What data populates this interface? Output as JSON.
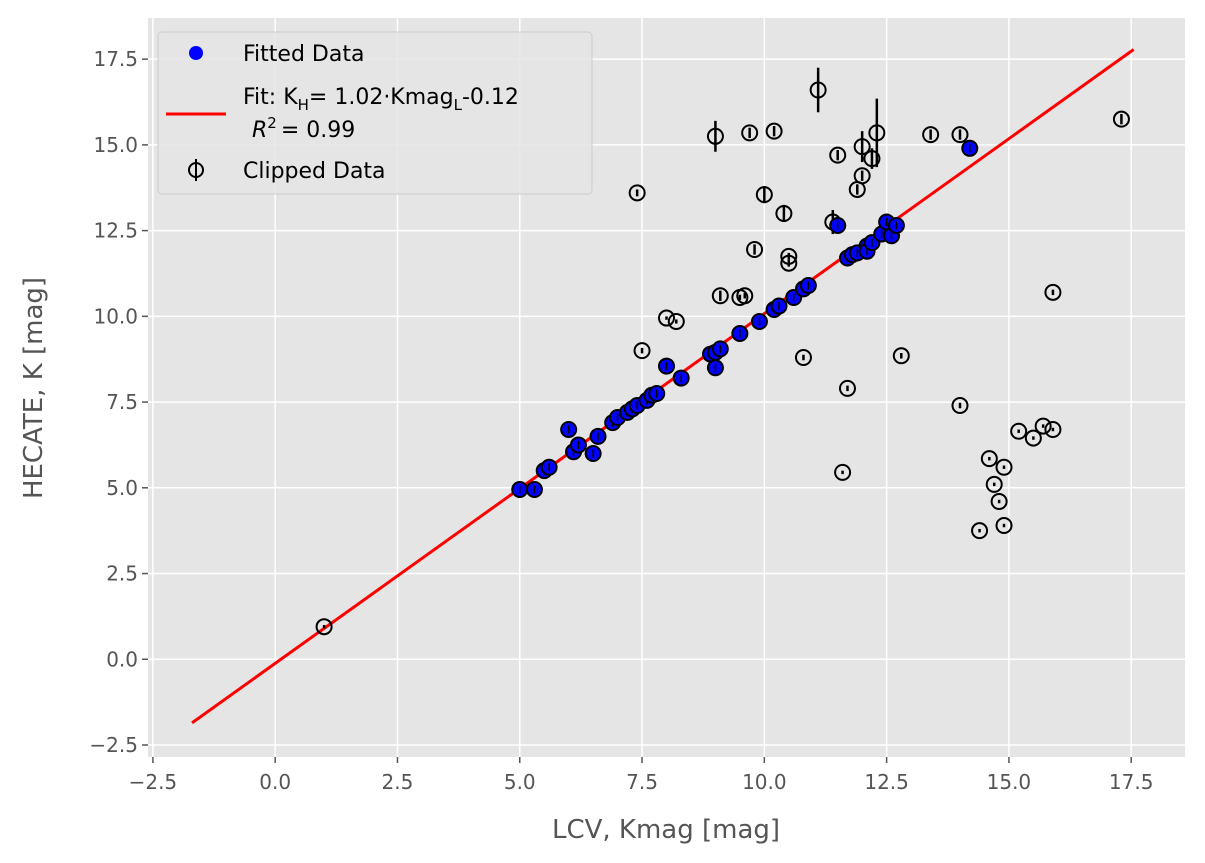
{
  "chart_data": {
    "type": "scatter",
    "xlabel": "LCV, Kmag [mag]",
    "ylabel": "HECATE, K [mag]",
    "xlim": [
      -2.6,
      18.6
    ],
    "ylim": [
      -2.85,
      18.7
    ],
    "x_ticks": [
      "−2.5",
      "0.0",
      "2.5",
      "5.0",
      "7.5",
      "10.0",
      "12.5",
      "15.0",
      "17.5"
    ],
    "y_ticks": [
      "−2.5",
      "0.0",
      "2.5",
      "5.0",
      "7.5",
      "10.0",
      "12.5",
      "15.0",
      "17.5"
    ],
    "grid": true,
    "background": "#e5e5e5",
    "legend_position": "upper-left",
    "fit": {
      "slope": 1.02,
      "intercept": -0.12,
      "x_range": [
        -1.7,
        17.55
      ],
      "color": "#ff0000",
      "label_text": "Fit: K",
      "label_sub1": "H",
      "label_mid": "= 1.02·Kmag",
      "label_sub2": "L",
      "label_tail": "-0.12",
      "r2_label": "R",
      "r2_value": "=  0.99"
    },
    "series": [
      {
        "name": "Fitted Data",
        "color": "#0000ff",
        "points": [
          [
            5.0,
            4.95
          ],
          [
            5.3,
            4.95
          ],
          [
            5.5,
            5.5
          ],
          [
            5.6,
            5.6
          ],
          [
            6.0,
            6.7
          ],
          [
            6.1,
            6.05
          ],
          [
            6.2,
            6.25
          ],
          [
            6.5,
            6.0
          ],
          [
            6.6,
            6.5
          ],
          [
            6.9,
            6.9
          ],
          [
            7.0,
            7.05
          ],
          [
            7.2,
            7.2
          ],
          [
            7.3,
            7.3
          ],
          [
            7.4,
            7.4
          ],
          [
            7.6,
            7.55
          ],
          [
            7.7,
            7.7
          ],
          [
            7.8,
            7.75
          ],
          [
            8.0,
            8.55
          ],
          [
            8.3,
            8.2
          ],
          [
            8.9,
            8.9
          ],
          [
            9.0,
            8.95
          ],
          [
            9.0,
            8.5
          ],
          [
            9.1,
            9.05
          ],
          [
            9.5,
            9.5
          ],
          [
            9.9,
            9.85
          ],
          [
            10.2,
            10.2
          ],
          [
            10.3,
            10.3
          ],
          [
            10.6,
            10.55
          ],
          [
            10.8,
            10.8
          ],
          [
            10.9,
            10.9
          ],
          [
            11.5,
            12.65
          ],
          [
            11.7,
            11.7
          ],
          [
            11.8,
            11.8
          ],
          [
            11.9,
            11.85
          ],
          [
            12.1,
            12.05
          ],
          [
            12.1,
            11.9
          ],
          [
            12.2,
            12.15
          ],
          [
            12.4,
            12.4
          ],
          [
            12.5,
            12.75
          ],
          [
            12.6,
            12.35
          ],
          [
            12.7,
            12.65
          ],
          [
            14.2,
            14.9
          ]
        ]
      },
      {
        "name": "Clipped Data",
        "color": "#000000",
        "points": [
          [
            1.0,
            0.95,
            0.05
          ],
          [
            7.4,
            13.6,
            0.1
          ],
          [
            7.5,
            9.0,
            0.08
          ],
          [
            8.0,
            9.95,
            0.05
          ],
          [
            8.2,
            9.85,
            0.06
          ],
          [
            9.0,
            15.25,
            0.45
          ],
          [
            9.1,
            10.6,
            0.15
          ],
          [
            9.5,
            10.55,
            0.08
          ],
          [
            9.6,
            10.6,
            0.08
          ],
          [
            9.7,
            15.35,
            0.15
          ],
          [
            9.8,
            11.95,
            0.15
          ],
          [
            10.0,
            13.55,
            0.25
          ],
          [
            10.2,
            15.4,
            0.15
          ],
          [
            10.4,
            13.0,
            0.25
          ],
          [
            10.5,
            11.75,
            0.1
          ],
          [
            10.5,
            11.55,
            0.1
          ],
          [
            10.8,
            8.8,
            0.08
          ],
          [
            11.1,
            16.6,
            0.65
          ],
          [
            11.4,
            12.75,
            0.35
          ],
          [
            11.5,
            14.7,
            0.15
          ],
          [
            11.6,
            5.45,
            0.05
          ],
          [
            11.7,
            7.9,
            0.08
          ],
          [
            11.9,
            13.7,
            0.15
          ],
          [
            12.0,
            14.95,
            0.45
          ],
          [
            12.0,
            14.1,
            0.15
          ],
          [
            12.2,
            14.6,
            0.3
          ],
          [
            12.3,
            15.35,
            1.0
          ],
          [
            12.8,
            8.85,
            0.08
          ],
          [
            13.4,
            15.3,
            0.15
          ],
          [
            14.0,
            15.3,
            0.15
          ],
          [
            14.0,
            7.4,
            0.08
          ],
          [
            14.4,
            3.75,
            0.05
          ],
          [
            14.6,
            5.85,
            0.05
          ],
          [
            14.7,
            5.1,
            0.05
          ],
          [
            14.8,
            4.6,
            0.05
          ],
          [
            14.9,
            5.6,
            0.05
          ],
          [
            14.9,
            3.9,
            0.05
          ],
          [
            15.2,
            6.65,
            0.05
          ],
          [
            15.5,
            6.45,
            0.05
          ],
          [
            15.7,
            6.8,
            0.05
          ],
          [
            15.9,
            6.7,
            0.05
          ],
          [
            15.9,
            10.7,
            0.08
          ],
          [
            17.3,
            15.75,
            0.15
          ]
        ]
      }
    ]
  }
}
